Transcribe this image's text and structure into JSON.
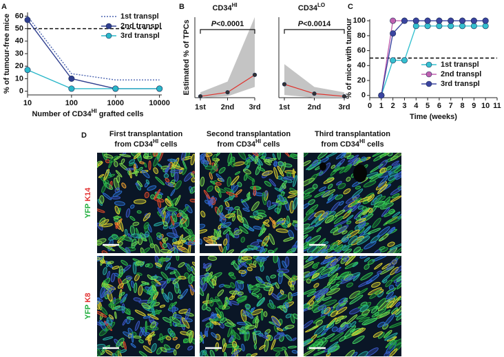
{
  "chart_data": [
    {
      "type": "line",
      "panel": "A",
      "ylabel": "% of tumour-free mice",
      "xlabel": [
        "Number of CD34",
        "HI",
        " grafted cells"
      ],
      "x": [
        10,
        100,
        1000,
        10000
      ],
      "xscale": "log",
      "xlim": [
        10,
        11300
      ],
      "xticks": [
        10,
        100,
        1000,
        10000
      ],
      "ylim": [
        -3,
        63
      ],
      "yticks": [
        0,
        10,
        20,
        30,
        40,
        50,
        60
      ],
      "hline": 50,
      "legend": "upper right",
      "series": [
        {
          "name": "1st transpl",
          "color": "#4a63b0",
          "style": "dotted",
          "marker": false,
          "values": [
            60,
            14,
            9,
            9
          ]
        },
        {
          "name": "2nd transpl",
          "color": "#2f3f8f",
          "style": "solid",
          "marker": true,
          "values": [
            57,
            10,
            2,
            2
          ]
        },
        {
          "name": "3rd transpl",
          "color": "#2ab7c9",
          "style": "solid",
          "marker": true,
          "values": [
            17,
            2,
            2,
            2
          ]
        }
      ]
    },
    {
      "type": "band",
      "panel": "B",
      "title": [
        "CD34",
        "HI"
      ],
      "ylabel": "Estimated % of TPCs",
      "categories": [
        "1st",
        "2nd",
        "3rd"
      ],
      "ylim": [
        0,
        60
      ],
      "annotation": [
        "P",
        "<0.0001"
      ],
      "series": [
        {
          "color": "#e0302a",
          "values": [
            1,
            4,
            17
          ],
          "lower": [
            0,
            1,
            8
          ],
          "upper": [
            4,
            12,
            60
          ]
        }
      ]
    },
    {
      "type": "band",
      "title": [
        "CD34",
        "LO"
      ],
      "categories": [
        "1st",
        "2nd",
        "3rd"
      ],
      "ylim": [
        0,
        60
      ],
      "annotation": [
        "P",
        "<0.0014"
      ],
      "series": [
        {
          "color": "#e0302a",
          "values": [
            10,
            3,
            1
          ],
          "lower": [
            2,
            0,
            0
          ],
          "upper": [
            25,
            8,
            4
          ]
        }
      ]
    },
    {
      "type": "line",
      "panel": "C",
      "ylabel": "% of mice with tumour",
      "xlabel": "Time (weeks)",
      "x": [
        1,
        2,
        3,
        4,
        5,
        6,
        7,
        8,
        9,
        10
      ],
      "xlim": [
        0,
        11
      ],
      "xticks": [
        0,
        1,
        2,
        3,
        4,
        5,
        6,
        7,
        8,
        9,
        10,
        11
      ],
      "ylim": [
        -3,
        102
      ],
      "yticks": [
        0,
        20,
        40,
        60,
        80,
        100
      ],
      "hline": 50,
      "legend": "lower right",
      "series": [
        {
          "name": "1st transpl",
          "color": "#35c0cf",
          "style": "solid",
          "marker": true,
          "values": [
            0,
            47,
            47,
            93,
            93,
            93,
            93,
            93,
            93,
            93
          ]
        },
        {
          "name": "2nd transpl",
          "color": "#c060b0",
          "style": "solid",
          "marker": true,
          "values": [
            0,
            100,
            100,
            100,
            100,
            100,
            100,
            100,
            100,
            100
          ]
        },
        {
          "name": "3rd transpl",
          "color": "#3a44a0",
          "style": "solid",
          "marker": true,
          "values": [
            0,
            83,
            100,
            100,
            100,
            100,
            100,
            100,
            100,
            100
          ]
        }
      ]
    }
  ],
  "micrographs": {
    "panel": "D",
    "columns": [
      {
        "line1": "First transplantation",
        "line2": [
          "from CD34",
          "HI",
          " cells"
        ]
      },
      {
        "line1": "Second transplantation",
        "line2": [
          "from CD34",
          "HI",
          " cells"
        ]
      },
      {
        "line1": "Third transplantation",
        "line2": [
          "from CD34",
          "HI",
          " cells"
        ]
      }
    ],
    "rows": [
      {
        "stain": [
          "YFP",
          "K14"
        ]
      },
      {
        "stain": [
          "YFP",
          "K8"
        ]
      }
    ]
  }
}
